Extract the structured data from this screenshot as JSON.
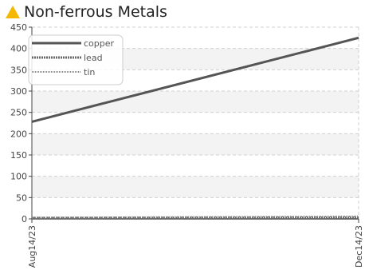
{
  "page": {
    "title": "Non-ferrous Metals"
  },
  "colors": {
    "accent_icon": "#f5b800",
    "copper": "#555555",
    "lead": "#6a6a6a",
    "tin": "#8a8a8a",
    "grid": "#d0d0d0",
    "band": "#f3f3f3",
    "axis": "#444444"
  },
  "chart_data": {
    "type": "line",
    "x": [
      "Aug14/23",
      "Dec14/23"
    ],
    "series": [
      {
        "name": "copper",
        "values": [
          228,
          425
        ]
      },
      {
        "name": "lead",
        "values": [
          2,
          3
        ]
      },
      {
        "name": "tin",
        "values": [
          3,
          6
        ]
      }
    ],
    "ylim": [
      0,
      450
    ],
    "yticks": [
      0,
      50,
      100,
      150,
      200,
      250,
      300,
      350,
      400,
      450
    ],
    "xticks": [
      "Aug14/23",
      "Dec14/23"
    ],
    "grid": true,
    "legend": "top-left"
  }
}
